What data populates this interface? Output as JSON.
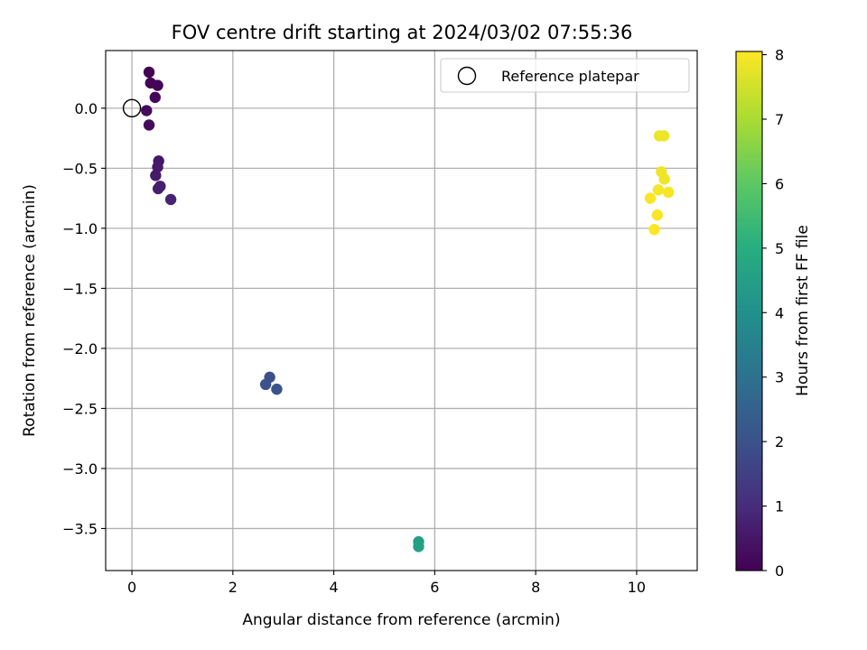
{
  "chart_data": {
    "type": "scatter",
    "title": "FOV centre drift starting at 2024/03/02 07:55:36",
    "xlabel": "Angular distance from reference (arcmin)",
    "ylabel": "Rotation from reference (arcmin)",
    "xlim": [
      -0.52,
      11.2
    ],
    "ylim": [
      -3.85,
      0.48
    ],
    "x_ticks": [
      0,
      2,
      4,
      6,
      8,
      10
    ],
    "x_tick_labels": [
      "0",
      "2",
      "4",
      "6",
      "8",
      "10"
    ],
    "y_ticks": [
      0.0,
      -0.5,
      -1.0,
      -1.5,
      -2.0,
      -2.5,
      -3.0,
      -3.5
    ],
    "y_tick_labels": [
      "0.0",
      "−0.5",
      "−1.0",
      "−1.5",
      "−2.0",
      "−2.5",
      "−3.0",
      "−3.5"
    ],
    "grid": true,
    "colormap": "viridis",
    "colorbar": {
      "label": "Hours from first FF file",
      "range": [
        0,
        8.05
      ],
      "ticks": [
        0,
        1,
        2,
        3,
        4,
        5,
        6,
        7,
        8
      ],
      "tick_labels": [
        "0",
        "1",
        "2",
        "3",
        "4",
        "5",
        "6",
        "7",
        "8"
      ]
    },
    "legend": {
      "placement": "upper-right",
      "entries": [
        "Reference platepar"
      ]
    },
    "reference": {
      "x": 0.0,
      "y": 0.0
    },
    "points": [
      {
        "x": 0.34,
        "y": 0.3,
        "hours": 0.0
      },
      {
        "x": 0.37,
        "y": 0.21,
        "hours": 0.05
      },
      {
        "x": 0.51,
        "y": 0.19,
        "hours": 0.1
      },
      {
        "x": 0.46,
        "y": 0.09,
        "hours": 0.15
      },
      {
        "x": 0.29,
        "y": -0.02,
        "hours": 0.2
      },
      {
        "x": 0.34,
        "y": -0.14,
        "hours": 0.25
      },
      {
        "x": 0.53,
        "y": -0.44,
        "hours": 0.5
      },
      {
        "x": 0.51,
        "y": -0.49,
        "hours": 0.55
      },
      {
        "x": 0.47,
        "y": -0.56,
        "hours": 0.6
      },
      {
        "x": 0.56,
        "y": -0.65,
        "hours": 0.65
      },
      {
        "x": 0.52,
        "y": -0.67,
        "hours": 0.7
      },
      {
        "x": 0.77,
        "y": -0.76,
        "hours": 0.8
      },
      {
        "x": 2.73,
        "y": -2.24,
        "hours": 1.95
      },
      {
        "x": 2.65,
        "y": -2.3,
        "hours": 2.0
      },
      {
        "x": 2.87,
        "y": -2.34,
        "hours": 2.05
      },
      {
        "x": 5.68,
        "y": -3.61,
        "hours": 4.5
      },
      {
        "x": 5.68,
        "y": -3.65,
        "hours": 4.55
      },
      {
        "x": 10.45,
        "y": -0.23,
        "hours": 7.85
      },
      {
        "x": 10.54,
        "y": -0.23,
        "hours": 7.85
      },
      {
        "x": 10.49,
        "y": -0.53,
        "hours": 7.9
      },
      {
        "x": 10.55,
        "y": -0.59,
        "hours": 7.9
      },
      {
        "x": 10.43,
        "y": -0.68,
        "hours": 7.95
      },
      {
        "x": 10.63,
        "y": -0.7,
        "hours": 7.95
      },
      {
        "x": 10.27,
        "y": -0.75,
        "hours": 8.0
      },
      {
        "x": 10.41,
        "y": -0.89,
        "hours": 8.0
      },
      {
        "x": 10.35,
        "y": -1.01,
        "hours": 8.05
      }
    ]
  }
}
